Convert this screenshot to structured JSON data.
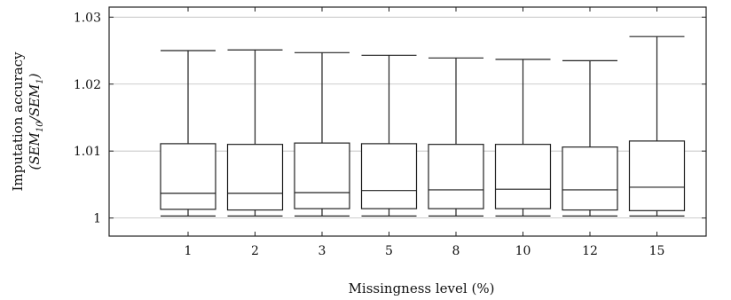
{
  "chart_data": {
    "type": "box",
    "xlabel": "Missingness level (%)",
    "ylabel_lines": [
      "Imputation accuracy",
      "(SEM₁₀/SEM₁)"
    ],
    "ylabel_math": {
      "base": "SEM",
      "num_sub": "10",
      "den_sub": "1"
    },
    "ylim": [
      0.9973,
      1.0315
    ],
    "yticks": [
      1.0,
      1.01,
      1.02,
      1.03
    ],
    "ytick_labels": [
      "1",
      "1.01",
      "1.02",
      "1.03"
    ],
    "grid": "horizontal",
    "categories": [
      "1",
      "2",
      "3",
      "5",
      "8",
      "10",
      "12",
      "15"
    ],
    "boxes": [
      {
        "min": 1.0003,
        "q1": 1.0013,
        "median": 1.0037,
        "q3": 1.0111,
        "max": 1.025
      },
      {
        "min": 1.0003,
        "q1": 1.0012,
        "median": 1.0037,
        "q3": 1.011,
        "max": 1.0251
      },
      {
        "min": 1.0003,
        "q1": 1.0014,
        "median": 1.0038,
        "q3": 1.0112,
        "max": 1.0247
      },
      {
        "min": 1.0003,
        "q1": 1.0014,
        "median": 1.0041,
        "q3": 1.0111,
        "max": 1.0243
      },
      {
        "min": 1.0003,
        "q1": 1.0014,
        "median": 1.0042,
        "q3": 1.011,
        "max": 1.0239
      },
      {
        "min": 1.0003,
        "q1": 1.0014,
        "median": 1.0043,
        "q3": 1.011,
        "max": 1.0237
      },
      {
        "min": 1.0003,
        "q1": 1.0012,
        "median": 1.0042,
        "q3": 1.0106,
        "max": 1.0235
      },
      {
        "min": 1.0003,
        "q1": 1.0011,
        "median": 1.0046,
        "q3": 1.0115,
        "max": 1.0271
      }
    ]
  }
}
